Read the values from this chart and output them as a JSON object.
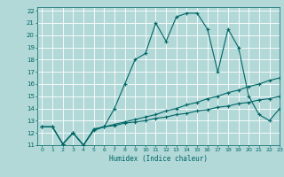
{
  "title": "",
  "xlabel": "Humidex (Indice chaleur)",
  "bg_color": "#b2d8d8",
  "grid_color": "#ffffff",
  "line_color": "#006666",
  "xlim": [
    -0.5,
    23
  ],
  "ylim": [
    11,
    22.3
  ],
  "xticks": [
    0,
    1,
    2,
    3,
    4,
    5,
    6,
    7,
    8,
    9,
    10,
    11,
    12,
    13,
    14,
    15,
    16,
    17,
    18,
    19,
    20,
    21,
    22,
    23
  ],
  "yticks": [
    11,
    12,
    13,
    14,
    15,
    16,
    17,
    18,
    19,
    20,
    21,
    22
  ],
  "series1_x": [
    0,
    1,
    2,
    3,
    4,
    5,
    6,
    7,
    8,
    9,
    10,
    11,
    12,
    13,
    14,
    15,
    16,
    17,
    18,
    19,
    20,
    21,
    22,
    23
  ],
  "series1_y": [
    12.5,
    12.5,
    11.1,
    12.0,
    11.0,
    12.2,
    12.5,
    14.0,
    16.0,
    18.0,
    18.5,
    21.0,
    19.5,
    21.5,
    21.8,
    21.8,
    20.5,
    17.0,
    20.5,
    19.0,
    15.0,
    13.5,
    13.0,
    14.0
  ],
  "series2_x": [
    0,
    1,
    2,
    3,
    4,
    5,
    6,
    7,
    8,
    9,
    10,
    11,
    12,
    13,
    14,
    15,
    16,
    17,
    18,
    19,
    20,
    21,
    22,
    23
  ],
  "series2_y": [
    12.5,
    12.5,
    11.1,
    12.0,
    11.0,
    12.3,
    12.5,
    12.7,
    12.9,
    13.1,
    13.3,
    13.5,
    13.8,
    14.0,
    14.3,
    14.5,
    14.8,
    15.0,
    15.3,
    15.5,
    15.8,
    16.0,
    16.3,
    16.5
  ],
  "series3_x": [
    0,
    1,
    2,
    3,
    4,
    5,
    6,
    7,
    8,
    9,
    10,
    11,
    12,
    13,
    14,
    15,
    16,
    17,
    18,
    19,
    20,
    21,
    22,
    23
  ],
  "series3_y": [
    12.5,
    12.5,
    11.1,
    12.0,
    11.0,
    12.3,
    12.5,
    12.6,
    12.8,
    12.9,
    13.0,
    13.2,
    13.3,
    13.5,
    13.6,
    13.8,
    13.9,
    14.1,
    14.2,
    14.4,
    14.5,
    14.7,
    14.8,
    15.0
  ]
}
